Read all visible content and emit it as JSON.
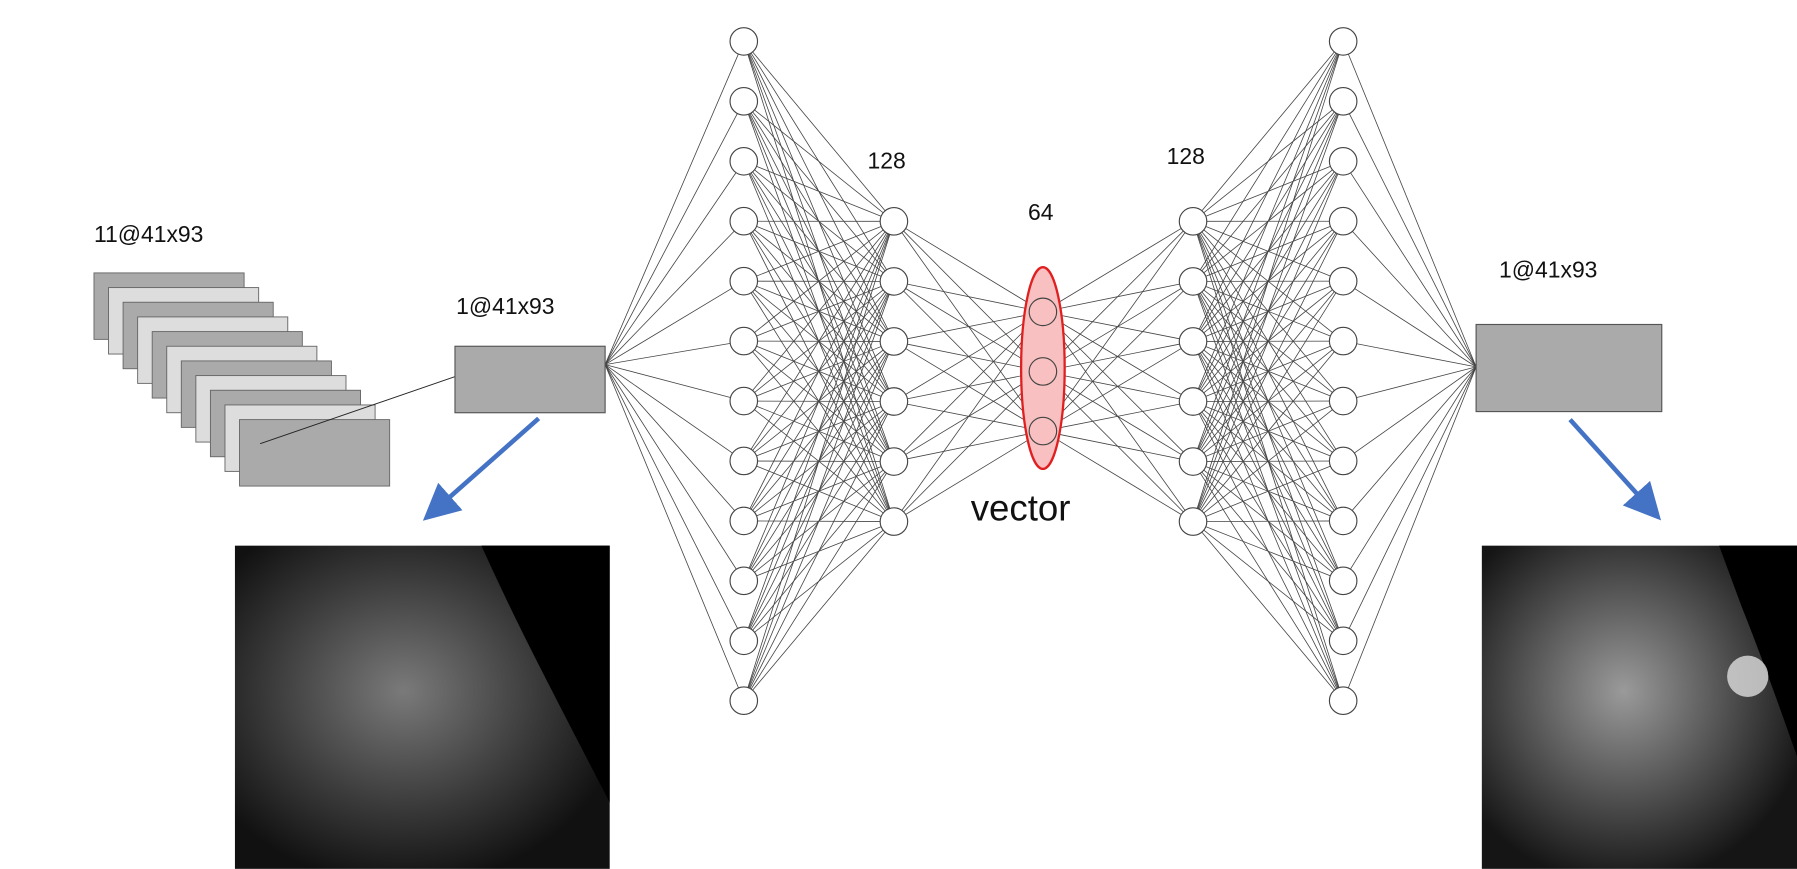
{
  "labels": {
    "stack": "11@41x93",
    "input": "1@41x93",
    "encoder_hidden": "128",
    "bottleneck": "64",
    "decoder_hidden": "128",
    "vector": "vector",
    "output": "1@41x93"
  }
}
